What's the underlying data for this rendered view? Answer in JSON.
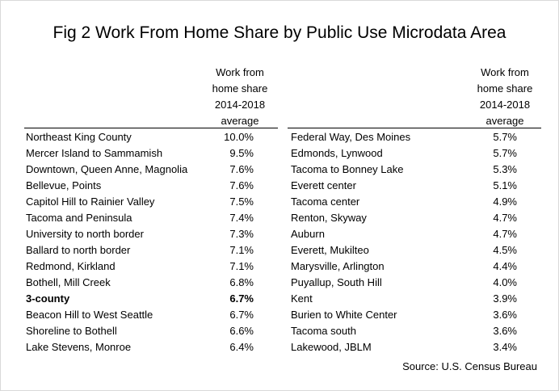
{
  "title": "Fig 2 Work From Home Share by Public Use Microdata Area",
  "header": {
    "line1": "Work from",
    "line2": "home share",
    "line3": "2014-2018",
    "line4": "average"
  },
  "left_rows": [
    {
      "area": "Northeast King County",
      "share": "10.0%"
    },
    {
      "area": "Mercer Island to Sammamish",
      "share": "9.5%"
    },
    {
      "area": "Downtown, Queen Anne, Magnolia",
      "share": "7.6%"
    },
    {
      "area": "Bellevue, Points",
      "share": "7.6%"
    },
    {
      "area": "Capitol Hill to Rainier Valley",
      "share": "7.5%"
    },
    {
      "area": "Tacoma and Peninsula",
      "share": "7.4%"
    },
    {
      "area": "University to north border",
      "share": "7.3%"
    },
    {
      "area": "Ballard to north border",
      "share": "7.1%"
    },
    {
      "area": "Redmond, Kirkland",
      "share": "7.1%"
    },
    {
      "area": "Bothell, Mill  Creek",
      "share": "6.8%"
    },
    {
      "area": "3-county",
      "share": "6.7%",
      "bold": true
    },
    {
      "area": "Beacon Hill to West Seattle",
      "share": "6.7%"
    },
    {
      "area": "Shoreline to Bothell",
      "share": "6.6%"
    },
    {
      "area": "Lake Stevens, Monroe",
      "share": "6.4%"
    }
  ],
  "right_rows": [
    {
      "area": "Federal Way, Des Moines",
      "share": "5.7%"
    },
    {
      "area": "Edmonds, Lynwood",
      "share": "5.7%"
    },
    {
      "area": "Tacoma to Bonney Lake",
      "share": "5.3%"
    },
    {
      "area": "Everett center",
      "share": "5.1%"
    },
    {
      "area": "Tacoma center",
      "share": "4.9%"
    },
    {
      "area": "Renton, Skyway",
      "share": "4.7%"
    },
    {
      "area": "Auburn",
      "share": "4.7%"
    },
    {
      "area": "Everett, Mukilteo",
      "share": "4.5%"
    },
    {
      "area": "Marysville, Arlington",
      "share": "4.4%"
    },
    {
      "area": "Puyallup, South Hill",
      "share": "4.0%"
    },
    {
      "area": "Kent",
      "share": "3.9%"
    },
    {
      "area": "Burien to White Center",
      "share": "3.6%"
    },
    {
      "area": "Tacoma south",
      "share": "3.6%"
    },
    {
      "area": "Lakewood, JBLM",
      "share": "3.4%"
    }
  ],
  "source": "Source: U.S. Census Bureau"
}
